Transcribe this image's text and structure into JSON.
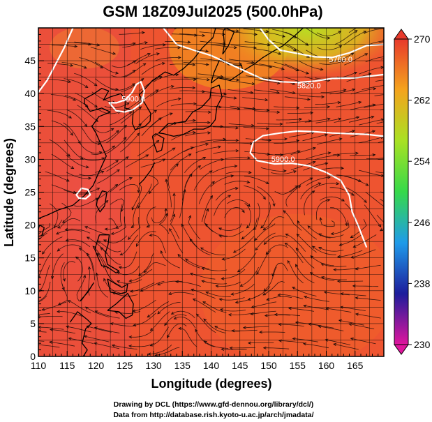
{
  "chart_data": {
    "type": "heatmap",
    "title": "GSM 18Z09Jul2025 (500.0hPa)",
    "xlabel": "Longitude (degrees)",
    "ylabel": "Latitude  (degrees)",
    "xlim": [
      110,
      170
    ],
    "ylim": [
      0,
      50
    ],
    "x_ticks": [
      110,
      115,
      120,
      125,
      130,
      135,
      140,
      145,
      150,
      155,
      160,
      165
    ],
    "y_ticks": [
      0,
      5,
      10,
      15,
      20,
      25,
      30,
      35,
      40,
      45
    ],
    "colorbar": {
      "min": 230,
      "max": 270,
      "ticks": [
        230,
        238,
        246,
        254,
        262,
        270
      ],
      "colors": [
        "#e0169d",
        "#1d1d9c",
        "#1f9bea",
        "#36d94a",
        "#a9e123",
        "#f4a41d",
        "#e83a2c"
      ]
    },
    "contour_level_label": "5900.0",
    "contour_labels": [
      {
        "text": "5900.0",
        "lon": 126.5,
        "lat": 38.8
      },
      {
        "text": "5900.0",
        "lon": 152.5,
        "lat": 29.6
      },
      {
        "text": "5820.0",
        "lon": 157.0,
        "lat": 40.8
      },
      {
        "text": "5760.0",
        "lon": 162.5,
        "lat": 44.8
      }
    ],
    "credits": [
      "Drawing by DCL (https://www.gfd-dennou.org/library/dcl/)",
      "Data from http://database.rish.kyoto-u.ac.jp/arch/jmadata/"
    ]
  }
}
